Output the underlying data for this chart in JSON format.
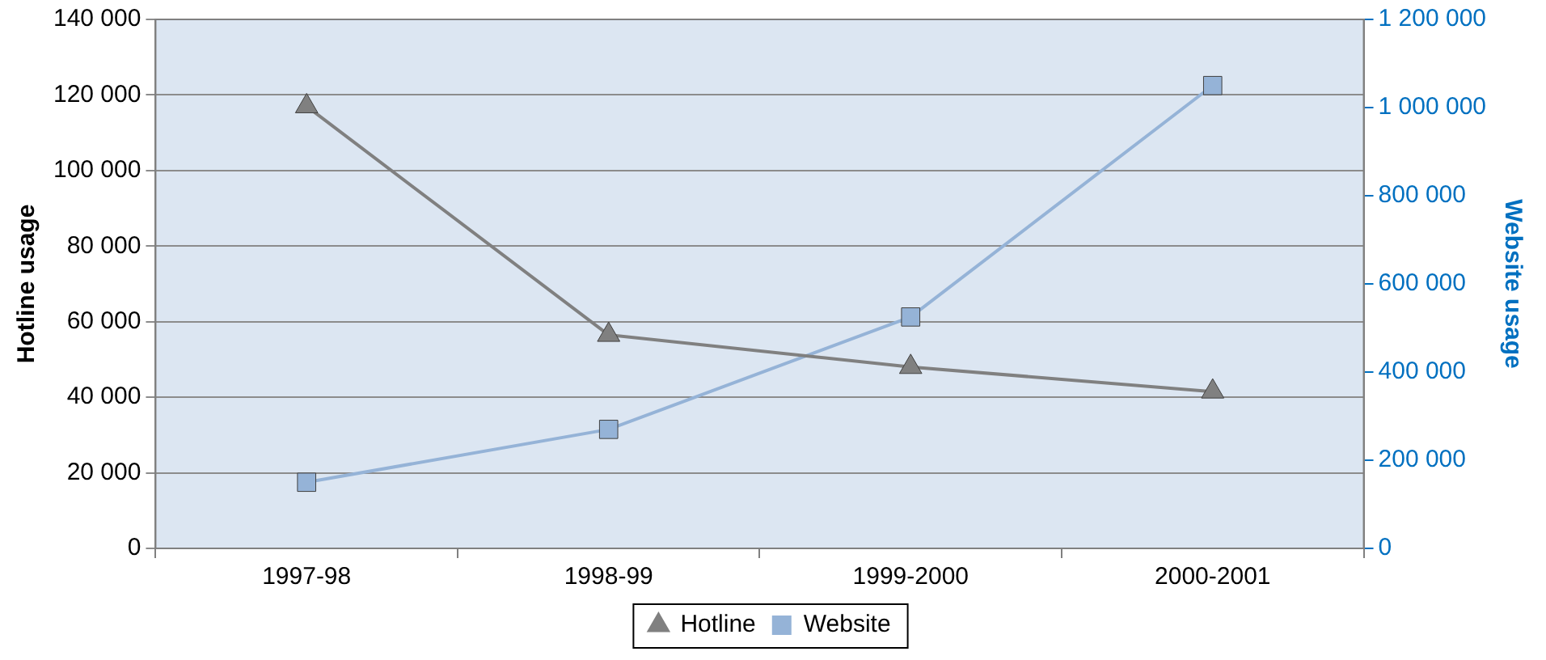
{
  "chart_data": {
    "type": "line",
    "categories": [
      "1997-98",
      "1998-99",
      "1999-2000",
      "2000-2001"
    ],
    "series": [
      {
        "name": "Hotline",
        "color": "#808080",
        "marker": "triangle",
        "values": [
          117000,
          56500,
          48000,
          41500
        ]
      },
      {
        "name": "Website",
        "color": "#95b3d7",
        "marker": "square",
        "axis": "y2",
        "values": [
          150000,
          270000,
          525000,
          1050000
        ]
      }
    ],
    "ylabel": "Hotline usage",
    "y2label": "Website usage",
    "ylim": [
      0,
      140000
    ],
    "yticks": [
      {
        "value": 0,
        "label": "0"
      },
      {
        "value": 20000,
        "label": "20 000"
      },
      {
        "value": 40000,
        "label": "40 000"
      },
      {
        "value": 60000,
        "label": "60 000"
      },
      {
        "value": 80000,
        "label": "80 000"
      },
      {
        "value": 100000,
        "label": "100 000"
      },
      {
        "value": 120000,
        "label": "120 000"
      },
      {
        "value": 140000,
        "label": "140 000"
      }
    ],
    "y2lim": [
      0,
      1200000
    ],
    "y2ticks": [
      {
        "value": 0,
        "label": "0"
      },
      {
        "value": 200000,
        "label": "200 000"
      },
      {
        "value": 400000,
        "label": "400 000"
      },
      {
        "value": 600000,
        "label": "600 000"
      },
      {
        "value": 800000,
        "label": "800 000"
      },
      {
        "value": 1000000,
        "label": "1 000 000"
      },
      {
        "value": 1200000,
        "label": "1 200 000"
      }
    ],
    "grid": "y",
    "legend": "bottom",
    "line_style": "solid"
  }
}
